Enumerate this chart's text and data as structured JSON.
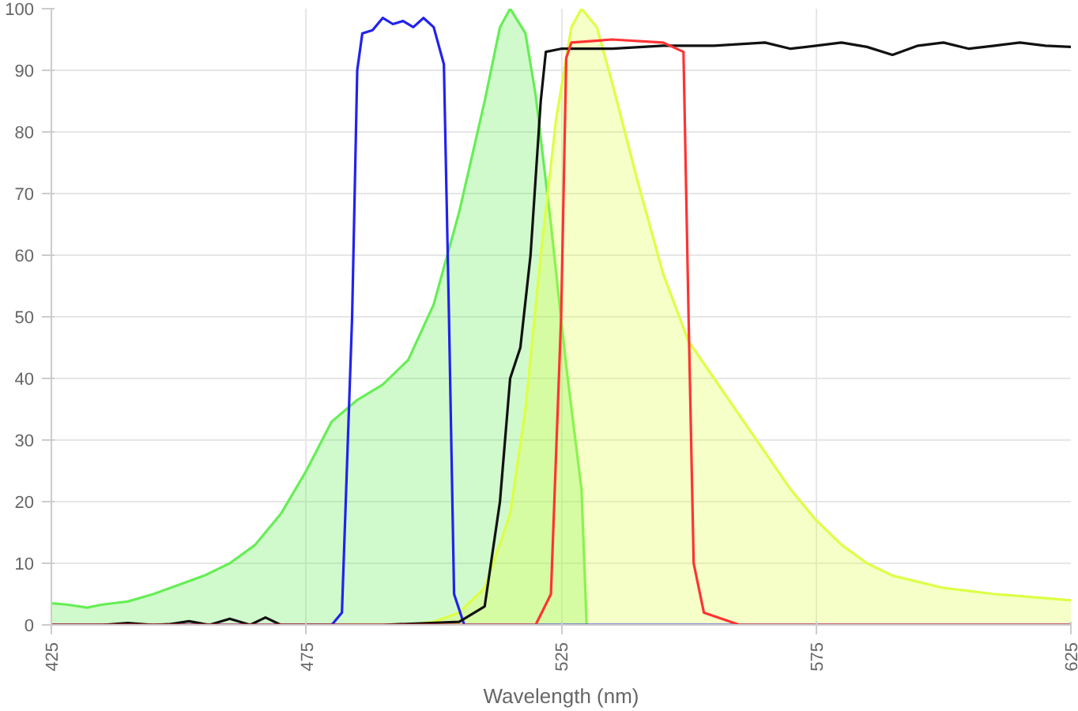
{
  "chart_data": {
    "type": "line",
    "xlabel": "Wavelength (nm)",
    "xlim": [
      425,
      625
    ],
    "ylim": [
      0,
      100
    ],
    "xticks": [
      425,
      475,
      525,
      575,
      625
    ],
    "yticks": [
      0,
      10,
      20,
      30,
      40,
      50,
      60,
      70,
      80,
      90,
      100
    ],
    "grid": true,
    "marker": "none",
    "line_style": "solid",
    "series": [
      {
        "type": "area",
        "color": "#66ee55",
        "x": [
          425,
          428,
          432,
          435,
          440,
          445,
          450,
          455,
          460,
          465,
          470,
          475,
          480,
          485,
          490,
          495,
          500,
          505,
          510,
          513,
          515,
          518,
          520,
          523,
          526,
          529,
          530
        ],
        "values": [
          3.5,
          3.3,
          2.8,
          3.3,
          3.8,
          5,
          6.5,
          8,
          10,
          13,
          18,
          25,
          33,
          36.5,
          39,
          43,
          52,
          67,
          85,
          97,
          100,
          96,
          86,
          65,
          42,
          22,
          0
        ]
      },
      {
        "type": "area",
        "color": "#ddff44",
        "x": [
          495,
          500,
          505,
          510,
          515,
          518,
          521,
          524,
          527,
          529,
          532,
          535,
          540,
          545,
          550,
          555,
          560,
          565,
          570,
          575,
          580,
          585,
          590,
          600,
          610,
          625
        ],
        "values": [
          0,
          0.5,
          2,
          6,
          18,
          35,
          60,
          82,
          97,
          100,
          97,
          88,
          72,
          57,
          46,
          40,
          34,
          28,
          22,
          17,
          13,
          10,
          8,
          6,
          5,
          4
        ]
      },
      {
        "color": "#2222ee",
        "x": [
          425,
          480,
          482,
          484,
          485,
          486,
          488,
          490,
          492,
          494,
          496,
          498,
          500,
          502,
          503,
          504,
          506,
          625
        ],
        "values": [
          0,
          0,
          2,
          50,
          90,
          96,
          96.5,
          98.5,
          97.5,
          98,
          97,
          98.5,
          97,
          91,
          50,
          5,
          0,
          0
        ]
      },
      {
        "color": "#111111",
        "x": [
          425,
          435,
          440,
          445,
          448,
          452,
          456,
          460,
          464,
          467,
          470,
          490,
          505,
          510,
          513,
          515,
          517,
          519,
          521,
          522,
          525,
          535,
          545,
          555,
          565,
          570,
          575,
          580,
          585,
          590,
          595,
          600,
          605,
          610,
          615,
          620,
          625
        ],
        "values": [
          0,
          0,
          0.3,
          0,
          0.1,
          0.6,
          0,
          1,
          0,
          1.2,
          0,
          0,
          0.5,
          3,
          20,
          40,
          45,
          60,
          85,
          93,
          93.5,
          93.5,
          94,
          94,
          94.5,
          93.5,
          94,
          94.5,
          93.8,
          92.5,
          94,
          94.5,
          93.5,
          94,
          94.5,
          94,
          93.8
        ]
      },
      {
        "color": "#ff3333",
        "x": [
          425,
          520,
          523,
          525,
          526,
          527,
          535,
          545,
          549,
          550,
          551,
          553,
          560,
          625
        ],
        "values": [
          0,
          0,
          5,
          50,
          92,
          94.5,
          95,
          94.5,
          93,
          50,
          10,
          2,
          0,
          0
        ]
      }
    ]
  }
}
